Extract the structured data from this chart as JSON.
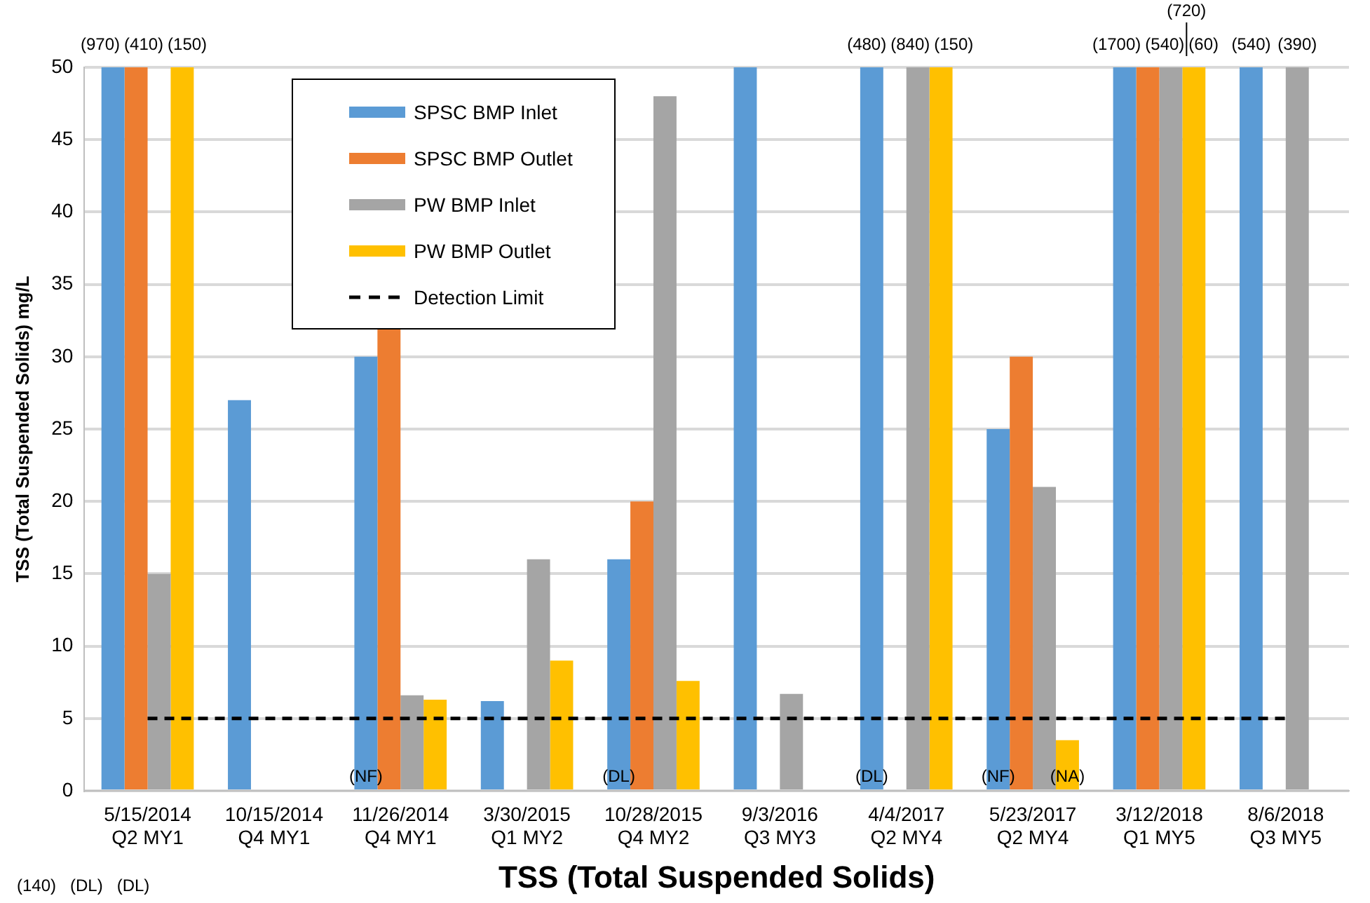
{
  "chart_data": {
    "type": "bar",
    "xlabel": "TSS (Total Suspended Solids)",
    "ylabel": "TSS (Total Suspended Solids) mg/L",
    "categories": [
      "5/15/2014\nQ2 MY1",
      "10/15/2014\nQ4 MY1",
      "11/26/2014\nQ4 MY1",
      "3/30/2015\nQ1 MY2",
      "10/28/2015\nQ4 MY2",
      "9/3/2016\nQ3 MY3",
      "4/4/2017\nQ2 MY4",
      "5/23/2017\nQ2 MY4",
      "3/12/2018\nQ1 MY5",
      "8/6/2018\nQ3 MY5"
    ],
    "series": [
      {
        "name": "SPSC BMP Inlet",
        "color": "#5b9bd5",
        "values": [
          50,
          27,
          30,
          6.2,
          16,
          50,
          50,
          25,
          50,
          50
        ]
      },
      {
        "name": "SPSC BMP Outlet",
        "color": "#ed7d31",
        "values": [
          50,
          null,
          32,
          null,
          20,
          null,
          null,
          30,
          50,
          null
        ]
      },
      {
        "name": "PW BMP Inlet",
        "color": "#a5a5a5",
        "values": [
          15,
          null,
          6.6,
          16,
          48,
          6.7,
          50,
          21,
          50,
          50
        ]
      },
      {
        "name": "PW BMP Outlet",
        "color": "#ffc000",
        "values": [
          50,
          null,
          6.3,
          9,
          7.6,
          null,
          50,
          3.5,
          50,
          null
        ]
      }
    ],
    "ref_lines": [
      {
        "axis": "y",
        "value": 5,
        "label": "Detection Limit",
        "color": "#000000",
        "line_style": "dashed"
      }
    ],
    "annotations": [
      {
        "text": "(970)",
        "x": "5/15/2014\nQ2 MY1",
        "y": 50
      },
      {
        "text": "(410)",
        "x": "5/15/2014\nQ2 MY1",
        "y": 50
      },
      {
        "text": "(150)",
        "x": "5/15/2014\nQ2 MY1",
        "y": 50
      },
      "(140)",
      {
        "text": "(480)",
        "x": "4/4/2017\nQ2 MY4",
        "y": 50
      },
      {
        "text": "(840)",
        "x": "4/4/2017\nQ2 MY4",
        "y": 50
      },
      {
        "text": "(150)",
        "x": "4/4/2017\nQ2 MY4",
        "y": 50
      },
      {
        "text": "(1700)",
        "x": "3/12/2018\nQ1 MY5",
        "y": 50
      },
      {
        "text": "(540)",
        "x": "3/12/2018\nQ1 MY5",
        "y": 50
      },
      {
        "text": "(720)",
        "x": "3/12/2018\nQ1 MY5",
        "y": 50
      },
      {
        "text": "(60)",
        "x": "3/12/2018\nQ1 MY5",
        "y": 50
      },
      {
        "text": "(540)",
        "x": "8/6/2018\nQ3 MY5",
        "y": 50
      },
      {
        "text": "(390)",
        "x": "8/6/2018\nQ3 MY5",
        "y": 50
      },
      "(DL)",
      "(DL)",
      {
        "text": "(NF)",
        "x": "11/26/2014\nQ4 MY1",
        "y": 0
      },
      {
        "text": "(DL)",
        "x": "10/28/2015\nQ4 MY2",
        "y": 0
      },
      {
        "text": "(DL)",
        "x": "4/4/2017\nQ2 MY4",
        "y": 0
      },
      {
        "text": "(NF)",
        "x": "5/23/2017\nQ2 MY4",
        "y": 0
      },
      {
        "text": "(NA)",
        "x": "5/23/2017\nQ2 MY4",
        "y": 0
      }
    ],
    "ylim": [
      0,
      50
    ],
    "yticks": [
      0,
      5,
      10,
      15,
      20,
      25,
      30,
      35,
      40,
      45,
      50
    ],
    "grid": "y",
    "legend": "top left"
  }
}
